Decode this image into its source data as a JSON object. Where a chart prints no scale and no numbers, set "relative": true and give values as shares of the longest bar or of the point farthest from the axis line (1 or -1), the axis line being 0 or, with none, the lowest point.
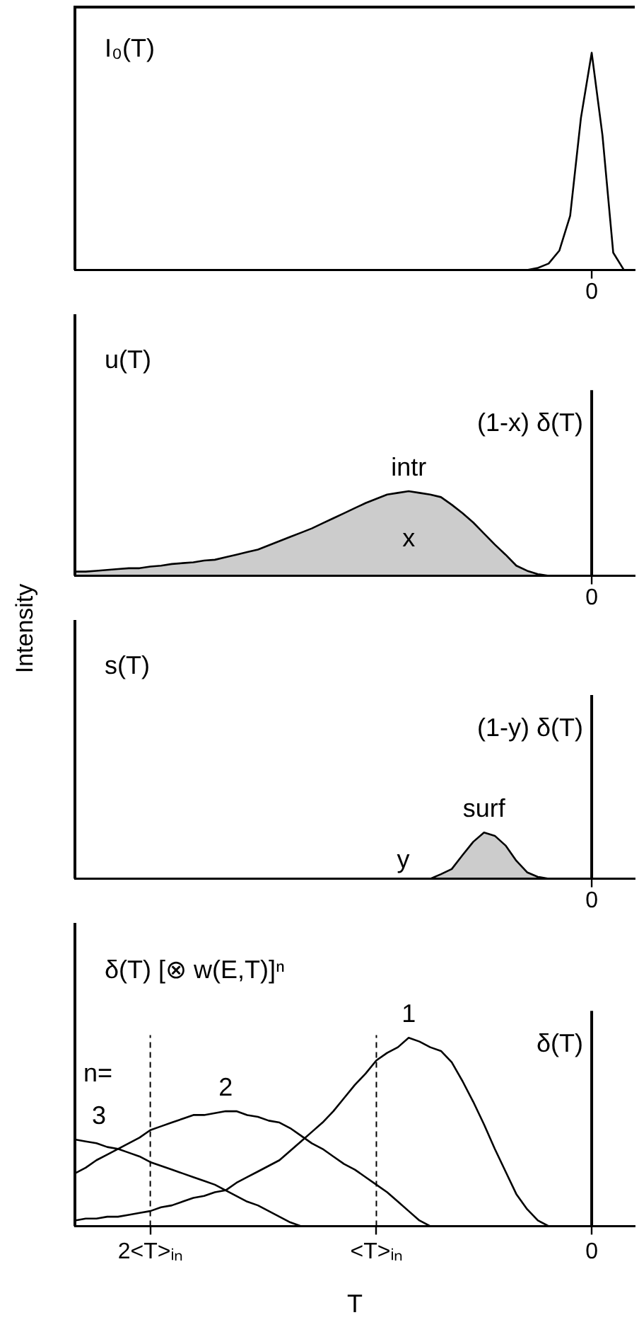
{
  "chart_data": [
    {
      "type": "line",
      "title": "I₀(T)",
      "relative": true,
      "categories": [
        null,
        null,
        null,
        null,
        null,
        null,
        null,
        null,
        null,
        null,
        null,
        null,
        null,
        null,
        null,
        null,
        null,
        null,
        null,
        null,
        null,
        null,
        null,
        null,
        null,
        null,
        null,
        null,
        null,
        null,
        null,
        null,
        null,
        null,
        null,
        null,
        null,
        null,
        null,
        null,
        null,
        null,
        null,
        null,
        null,
        null,
        null,
        null,
        null,
        null,
        null,
        null,
        null
      ],
      "annotations": [
        "0"
      ],
      "series": [
        {
          "color": "#000000",
          "values": [
            null,
            null,
            null,
            null,
            null,
            null,
            null,
            null,
            null,
            null,
            null,
            null,
            null,
            null,
            null,
            null,
            null,
            null,
            null,
            null,
            null,
            null,
            null,
            null,
            null,
            null,
            null,
            null,
            null,
            null,
            null,
            null,
            null,
            null,
            null,
            null,
            null,
            null,
            null,
            null,
            null,
            null,
            0,
            0.01,
            0.03,
            0.09,
            0.25,
            0.7,
            1,
            0.62,
            0.08,
            0,
            null
          ]
        }
      ]
    },
    {
      "type": "line",
      "title": "u(T)",
      "ylabel": "Intensity",
      "relative": true,
      "categories": [
        null,
        null,
        null,
        null,
        null,
        null,
        null,
        null,
        null,
        null,
        null,
        null,
        null,
        null,
        null,
        null,
        null,
        null,
        null,
        null,
        null,
        null,
        null,
        null,
        null,
        null,
        null,
        null,
        null,
        null,
        null,
        null,
        null,
        null,
        null,
        null,
        null,
        null,
        null,
        null,
        null,
        null,
        null,
        null,
        null,
        null,
        null,
        null,
        null,
        null,
        null,
        null,
        null
      ],
      "series": [
        {
          "name": "intr",
          "type": "area",
          "color": "#000000",
          "values": [
            0.05,
            0.05,
            0.06,
            0.07,
            0.08,
            0.09,
            0.09,
            0.11,
            0.12,
            0.14,
            0.15,
            0.16,
            0.18,
            0.19,
            0.22,
            0.25,
            0.28,
            0.31,
            0.36,
            0.41,
            0.46,
            0.51,
            0.56,
            0.62,
            0.68,
            0.74,
            0.8,
            0.86,
            0.91,
            0.96,
            0.98,
            1,
            0.98,
            0.96,
            0.93,
            0.84,
            0.74,
            0.63,
            0.5,
            0.37,
            0.25,
            0.12,
            0.06,
            0.02,
            0,
            null,
            null,
            null,
            null,
            null,
            null,
            null,
            null
          ]
        }
      ],
      "ref_lines": [
        {
          "axis": "x",
          "label": "(1-x) δ(T)"
        }
      ],
      "annotations": [
        "x",
        "0"
      ]
    },
    {
      "type": "line",
      "title": "s(T)",
      "relative": true,
      "categories": [
        null,
        null,
        null,
        null,
        null,
        null,
        null,
        null,
        null,
        null,
        null,
        null,
        null,
        null,
        null,
        null,
        null,
        null,
        null,
        null,
        null,
        null,
        null,
        null,
        null,
        null,
        null,
        null,
        null,
        null,
        null,
        null,
        null,
        null,
        null,
        null,
        null,
        null,
        null,
        null,
        null,
        null,
        null,
        null,
        null,
        null,
        null,
        null,
        null,
        null,
        null,
        null,
        null
      ],
      "series": [
        {
          "name": "surf",
          "type": "area",
          "color": "#000000",
          "values": [
            null,
            null,
            null,
            null,
            null,
            null,
            null,
            null,
            null,
            null,
            null,
            null,
            null,
            null,
            null,
            null,
            null,
            null,
            null,
            null,
            null,
            null,
            null,
            null,
            null,
            null,
            null,
            null,
            null,
            null,
            null,
            null,
            null,
            0,
            0.1,
            0.21,
            0.51,
            0.8,
            1,
            0.93,
            0.72,
            0.39,
            0.14,
            0.04,
            0,
            null,
            null,
            null,
            null,
            null,
            null,
            null,
            null
          ]
        }
      ],
      "ref_lines": [
        {
          "axis": "x",
          "label": "(1-y) δ(T)"
        }
      ],
      "annotations": [
        "y",
        "0"
      ]
    },
    {
      "type": "line",
      "title": "δ(T) [⊗ w(E,T)]ⁿ",
      "xlabel": "T",
      "relative": true,
      "categories": [
        null,
        null,
        null,
        null,
        null,
        null,
        null,
        "2<T>ᵢₙ",
        null,
        null,
        null,
        null,
        null,
        null,
        null,
        null,
        null,
        null,
        null,
        null,
        null,
        null,
        null,
        null,
        null,
        null,
        null,
        null,
        "<T>ᵢₙ",
        null,
        null,
        null,
        null,
        null,
        null,
        null,
        null,
        null,
        null,
        null,
        null,
        null,
        null,
        null,
        null,
        null,
        null,
        null,
        "0",
        null,
        null,
        null,
        null
      ],
      "series": [
        {
          "name": "1",
          "color": "#000000",
          "values": [
            0.03,
            0.04,
            0.04,
            0.05,
            0.05,
            0.06,
            0.07,
            0.08,
            0.1,
            0.11,
            0.13,
            0.15,
            0.16,
            0.18,
            0.19,
            0.23,
            0.26,
            0.29,
            0.32,
            0.35,
            0.4,
            0.45,
            0.5,
            0.55,
            0.61,
            0.68,
            0.75,
            0.81,
            0.88,
            0.92,
            0.95,
            1,
            0.98,
            0.95,
            0.93,
            0.87,
            0.77,
            0.66,
            0.54,
            0.41,
            0.29,
            0.17,
            0.09,
            0.03,
            0,
            null,
            null,
            null,
            null,
            null,
            null,
            null,
            null
          ]
        },
        {
          "name": "2",
          "color": "#000000",
          "values": [
            0.28,
            0.31,
            0.35,
            0.38,
            0.41,
            0.44,
            0.47,
            0.51,
            0.53,
            0.55,
            0.57,
            0.59,
            0.59,
            0.6,
            0.61,
            0.61,
            0.59,
            0.58,
            0.56,
            0.55,
            0.52,
            0.48,
            0.44,
            0.41,
            0.37,
            0.33,
            0.3,
            0.26,
            0.22,
            0.18,
            0.13,
            0.08,
            0.03,
            0,
            null,
            null,
            null,
            null,
            null,
            null,
            null,
            null,
            null,
            null,
            null,
            null,
            null,
            null,
            null,
            null,
            null,
            null,
            null
          ]
        },
        {
          "name": "3",
          "color": "#000000",
          "values": [
            0.46,
            0.45,
            0.44,
            0.42,
            0.41,
            0.39,
            0.37,
            0.34,
            0.32,
            0.3,
            0.28,
            0.26,
            0.24,
            0.22,
            0.19,
            0.16,
            0.13,
            0.11,
            0.08,
            0.05,
            0.02,
            0,
            null,
            null,
            null,
            null,
            null,
            null,
            null,
            null,
            null,
            null,
            null,
            null,
            null,
            null,
            null,
            null,
            null,
            null,
            null,
            null,
            null,
            null,
            null,
            null,
            null,
            null,
            null,
            null,
            null,
            null,
            null
          ]
        }
      ],
      "ref_lines": [
        {
          "axis": "x",
          "value": "2<T>ᵢₙ",
          "line_style": "dashed"
        },
        {
          "axis": "x",
          "value": "<T>ᵢₙ",
          "line_style": "dashed"
        },
        {
          "axis": "x",
          "value": "0",
          "label": "δ(T)"
        }
      ],
      "annotations": [
        "n="
      ]
    }
  ]
}
